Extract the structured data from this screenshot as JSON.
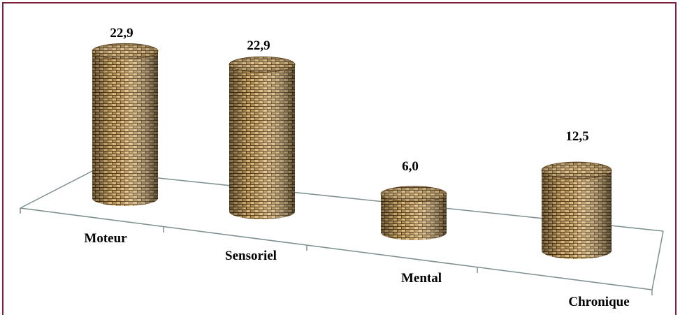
{
  "chart_data": {
    "type": "bar",
    "style": "3d-cylinder",
    "categories": [
      "Moteur",
      "Sensoriel",
      "Mental",
      "Chronique"
    ],
    "values": [
      22.9,
      22.9,
      6.0,
      12.5
    ],
    "value_labels": [
      "22,9",
      "22,9",
      "6,0",
      "12,5"
    ],
    "title": "",
    "xlabel": "",
    "ylabel": "",
    "ylim": [
      0,
      25
    ],
    "grid": false,
    "legend": "none"
  },
  "colors": {
    "frame_border": "#7a1e3a",
    "axis_line": "#7f8f8f",
    "bar_texture_light": "#d8b678",
    "bar_texture_dark": "#6a4a20"
  }
}
